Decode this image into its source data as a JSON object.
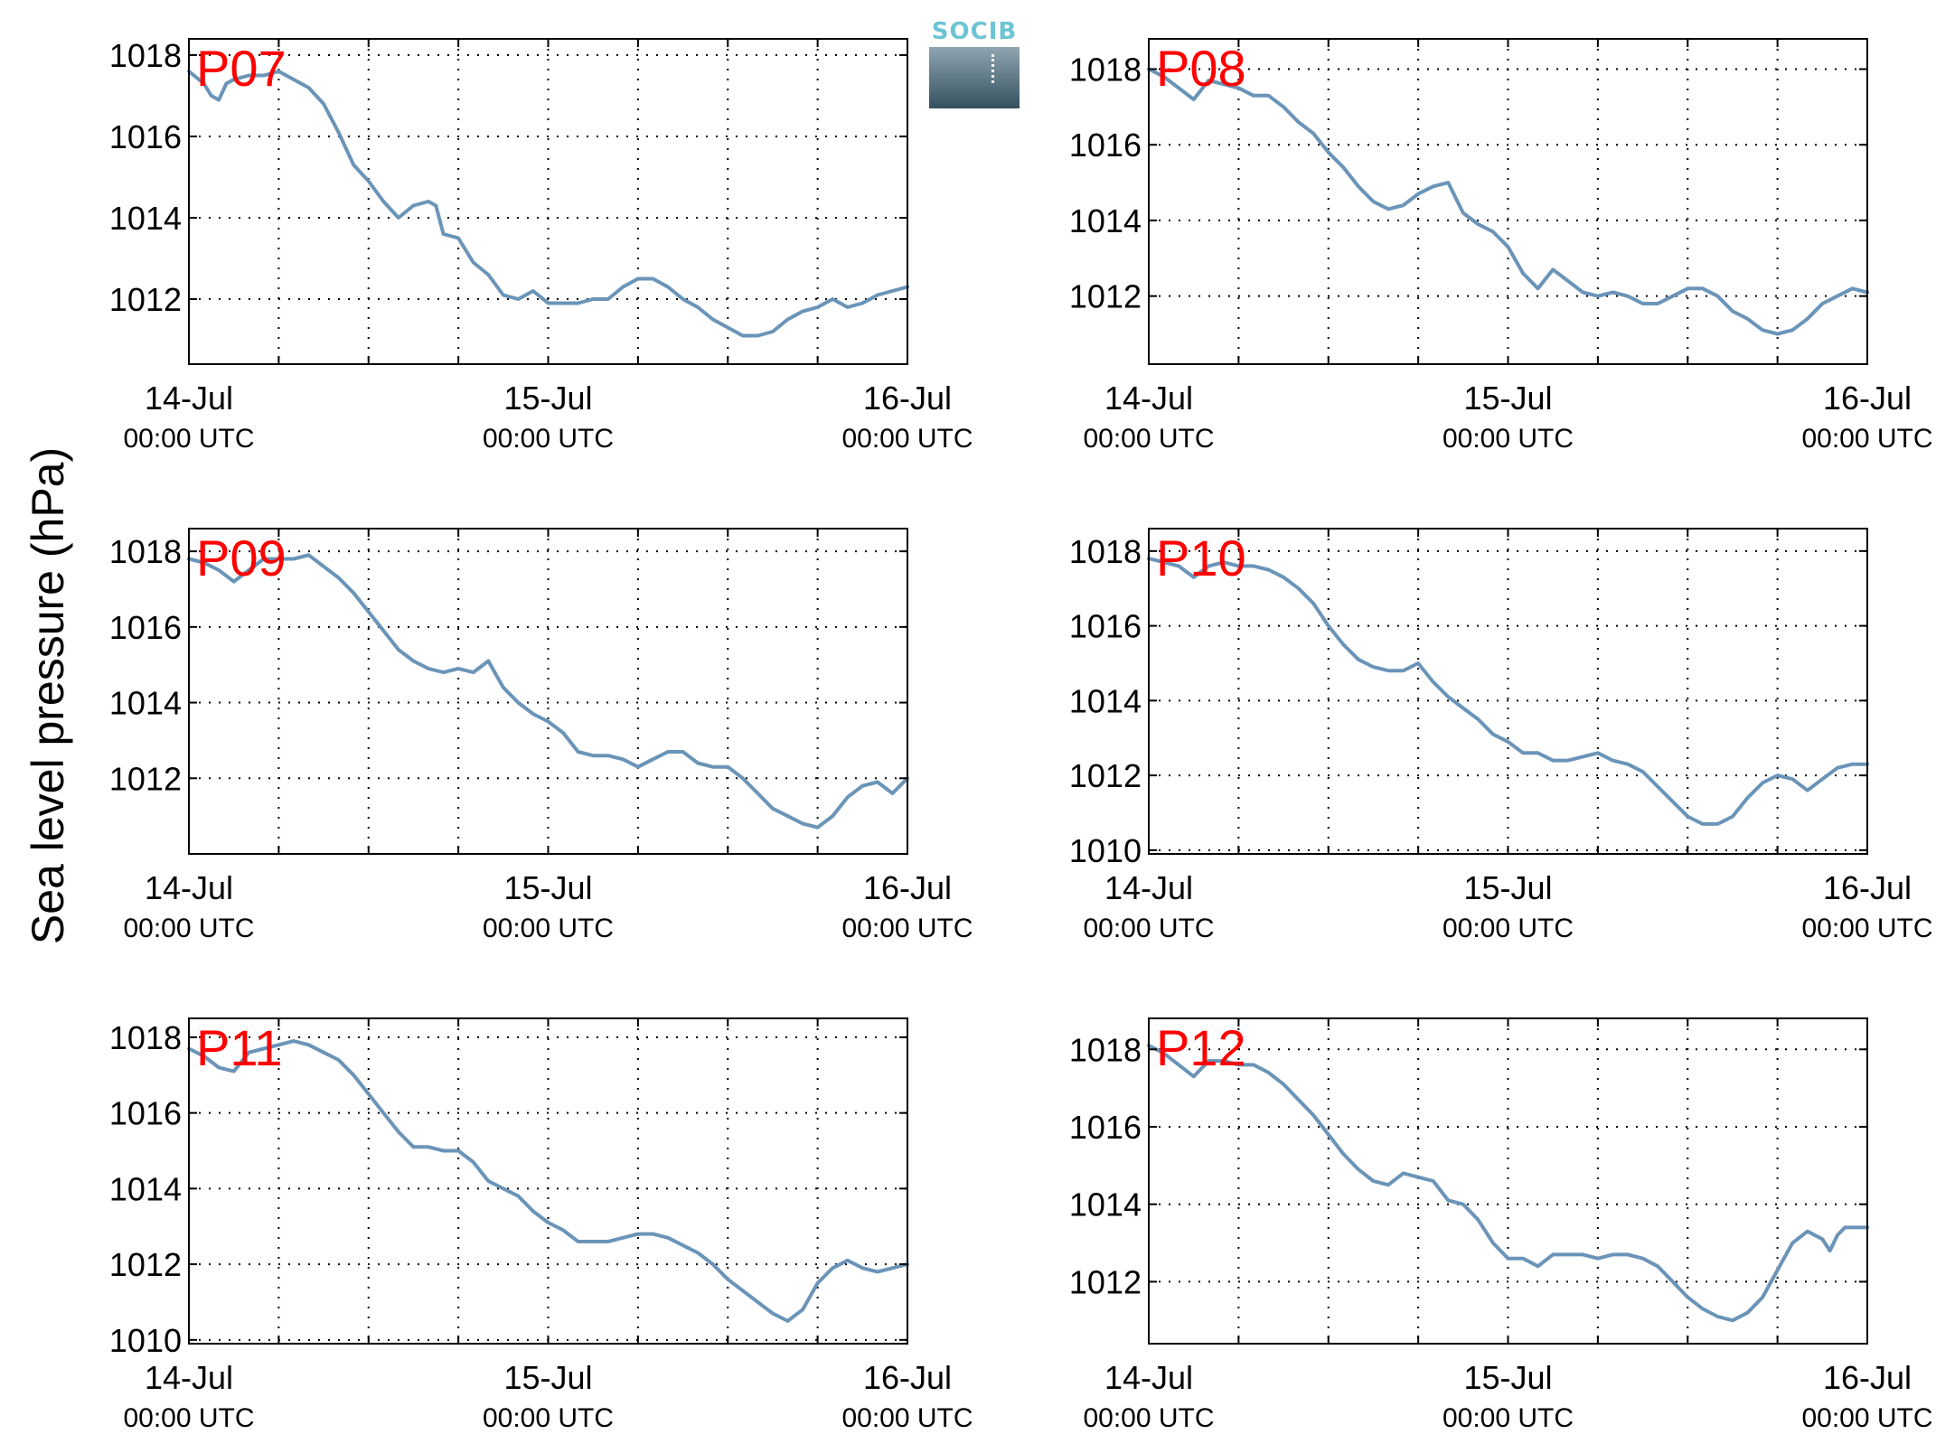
{
  "ylabel": "Sea level pressure (hPa)",
  "logo": {
    "text": "SOCIB"
  },
  "colors": {
    "line": "#6a94b8",
    "station_label": "#ff0000",
    "axes": "#000000",
    "grid": "#000000"
  },
  "chart_data": [
    {
      "type": "line",
      "title": "P07",
      "xlim": [
        0,
        48
      ],
      "ylim": [
        1010.4,
        1018.4
      ],
      "yticks": [
        1012,
        1014,
        1016,
        1018
      ],
      "xticks": [
        0,
        6,
        12,
        18,
        24,
        30,
        36,
        42,
        48
      ],
      "xtick_labels": [
        {
          "x": 0,
          "date": "14-Jul",
          "time": "00:00 UTC"
        },
        {
          "x": 24,
          "date": "15-Jul",
          "time": "00:00 UTC"
        },
        {
          "x": 48,
          "date": "16-Jul",
          "time": "00:00 UTC"
        }
      ],
      "grid": true,
      "series": [
        {
          "x": [
            0,
            1,
            1.5,
            2,
            2.5,
            3,
            4,
            5,
            6,
            7,
            8,
            9,
            10,
            11,
            12,
            13,
            14,
            15,
            16,
            16.5,
            17,
            18,
            19,
            20,
            21,
            22,
            23,
            24,
            25,
            26,
            27,
            28,
            29,
            30,
            31,
            32,
            33,
            34,
            35,
            36,
            37,
            38,
            39,
            40,
            41,
            42,
            43,
            44,
            45,
            46,
            47,
            48
          ],
          "y": [
            1017.6,
            1017.3,
            1017.0,
            1016.9,
            1017.3,
            1017.4,
            1017.5,
            1017.5,
            1017.6,
            1017.4,
            1017.2,
            1016.8,
            1016.1,
            1015.3,
            1014.9,
            1014.4,
            1014.0,
            1014.3,
            1014.4,
            1014.3,
            1013.6,
            1013.5,
            1012.9,
            1012.6,
            1012.1,
            1012.0,
            1012.2,
            1011.9,
            1011.9,
            1011.9,
            1012.0,
            1012.0,
            1012.3,
            1012.5,
            1012.5,
            1012.3,
            1012.0,
            1011.8,
            1011.5,
            1011.3,
            1011.1,
            1011.1,
            1011.2,
            1011.5,
            1011.7,
            1011.8,
            1012.0,
            1011.8,
            1011.9,
            1012.1,
            1012.2,
            1012.3
          ]
        }
      ]
    },
    {
      "type": "line",
      "title": "P08",
      "xlim": [
        0,
        48
      ],
      "ylim": [
        1010.2,
        1018.8
      ],
      "yticks": [
        1012,
        1014,
        1016,
        1018
      ],
      "xticks": [
        0,
        6,
        12,
        18,
        24,
        30,
        36,
        42,
        48
      ],
      "xtick_labels": [
        {
          "x": 0,
          "date": "14-Jul",
          "time": "00:00 UTC"
        },
        {
          "x": 24,
          "date": "15-Jul",
          "time": "00:00 UTC"
        },
        {
          "x": 48,
          "date": "16-Jul",
          "time": "00:00 UTC"
        }
      ],
      "grid": true,
      "series": [
        {
          "x": [
            0,
            1,
            2,
            3,
            4,
            5,
            6,
            7,
            8,
            9,
            10,
            11,
            12,
            13,
            14,
            15,
            16,
            17,
            18,
            19,
            20,
            21,
            22,
            23,
            24,
            25,
            26,
            27,
            28,
            29,
            30,
            31,
            32,
            33,
            34,
            35,
            36,
            37,
            38,
            39,
            40,
            41,
            42,
            43,
            44,
            45,
            46,
            47,
            48
          ],
          "y": [
            1018.0,
            1017.8,
            1017.5,
            1017.2,
            1017.7,
            1017.6,
            1017.5,
            1017.3,
            1017.3,
            1017.0,
            1016.6,
            1016.3,
            1015.8,
            1015.4,
            1014.9,
            1014.5,
            1014.3,
            1014.4,
            1014.7,
            1014.9,
            1015.0,
            1014.2,
            1013.9,
            1013.7,
            1013.3,
            1012.6,
            1012.2,
            1012.7,
            1012.4,
            1012.1,
            1012.0,
            1012.1,
            1012.0,
            1011.8,
            1011.8,
            1012.0,
            1012.2,
            1012.2,
            1012.0,
            1011.6,
            1011.4,
            1011.1,
            1011.0,
            1011.1,
            1011.4,
            1011.8,
            1012.0,
            1012.2,
            1012.1
          ]
        }
      ]
    },
    {
      "type": "line",
      "title": "P09",
      "xlim": [
        0,
        48
      ],
      "ylim": [
        1010.0,
        1018.6
      ],
      "yticks": [
        1012,
        1014,
        1016,
        1018
      ],
      "xticks": [
        0,
        6,
        12,
        18,
        24,
        30,
        36,
        42,
        48
      ],
      "xtick_labels": [
        {
          "x": 0,
          "date": "14-Jul",
          "time": "00:00 UTC"
        },
        {
          "x": 24,
          "date": "15-Jul",
          "time": "00:00 UTC"
        },
        {
          "x": 48,
          "date": "16-Jul",
          "time": "00:00 UTC"
        }
      ],
      "grid": true,
      "series": [
        {
          "x": [
            0,
            1,
            2,
            3,
            4,
            5,
            6,
            7,
            8,
            9,
            10,
            11,
            12,
            13,
            14,
            15,
            16,
            17,
            18,
            19,
            20,
            21,
            22,
            23,
            24,
            25,
            26,
            27,
            28,
            29,
            30,
            31,
            32,
            33,
            34,
            35,
            36,
            37,
            38,
            39,
            40,
            41,
            42,
            43,
            44,
            45,
            46,
            47,
            48
          ],
          "y": [
            1017.8,
            1017.7,
            1017.5,
            1017.2,
            1017.5,
            1017.8,
            1017.8,
            1017.8,
            1017.9,
            1017.6,
            1017.3,
            1016.9,
            1016.4,
            1015.9,
            1015.4,
            1015.1,
            1014.9,
            1014.8,
            1014.9,
            1014.8,
            1015.1,
            1014.4,
            1014.0,
            1013.7,
            1013.5,
            1013.2,
            1012.7,
            1012.6,
            1012.6,
            1012.5,
            1012.3,
            1012.5,
            1012.7,
            1012.7,
            1012.4,
            1012.3,
            1012.3,
            1012.0,
            1011.6,
            1011.2,
            1011.0,
            1010.8,
            1010.7,
            1011.0,
            1011.5,
            1011.8,
            1011.9,
            1011.6,
            1012.0
          ]
        }
      ]
    },
    {
      "type": "line",
      "title": "P10",
      "xlim": [
        0,
        48
      ],
      "ylim": [
        1009.9,
        1018.6
      ],
      "yticks": [
        1010,
        1012,
        1014,
        1016,
        1018
      ],
      "xticks": [
        0,
        6,
        12,
        18,
        24,
        30,
        36,
        42,
        48
      ],
      "xtick_labels": [
        {
          "x": 0,
          "date": "14-Jul",
          "time": "00:00 UTC"
        },
        {
          "x": 24,
          "date": "15-Jul",
          "time": "00:00 UTC"
        },
        {
          "x": 48,
          "date": "16-Jul",
          "time": "00:00 UTC"
        }
      ],
      "grid": true,
      "series": [
        {
          "x": [
            0,
            1,
            2,
            3,
            4,
            5,
            6,
            7,
            8,
            9,
            10,
            11,
            12,
            13,
            14,
            15,
            16,
            17,
            18,
            19,
            20,
            21,
            22,
            23,
            24,
            25,
            26,
            27,
            28,
            29,
            30,
            31,
            32,
            33,
            34,
            35,
            36,
            37,
            38,
            39,
            40,
            41,
            42,
            43,
            44,
            45,
            46,
            47,
            48
          ],
          "y": [
            1017.8,
            1017.7,
            1017.6,
            1017.3,
            1017.6,
            1017.7,
            1017.6,
            1017.6,
            1017.5,
            1017.3,
            1017.0,
            1016.6,
            1016.0,
            1015.5,
            1015.1,
            1014.9,
            1014.8,
            1014.8,
            1015.0,
            1014.5,
            1014.1,
            1013.8,
            1013.5,
            1013.1,
            1012.9,
            1012.6,
            1012.6,
            1012.4,
            1012.4,
            1012.5,
            1012.6,
            1012.4,
            1012.3,
            1012.1,
            1011.7,
            1011.3,
            1010.9,
            1010.7,
            1010.7,
            1010.9,
            1011.4,
            1011.8,
            1012.0,
            1011.9,
            1011.6,
            1011.9,
            1012.2,
            1012.3,
            1012.3
          ]
        }
      ]
    },
    {
      "type": "line",
      "title": "P11",
      "xlim": [
        0,
        48
      ],
      "ylim": [
        1009.9,
        1018.5
      ],
      "yticks": [
        1010,
        1012,
        1014,
        1016,
        1018
      ],
      "xticks": [
        0,
        6,
        12,
        18,
        24,
        30,
        36,
        42,
        48
      ],
      "xtick_labels": [
        {
          "x": 0,
          "date": "14-Jul",
          "time": "00:00 UTC"
        },
        {
          "x": 24,
          "date": "15-Jul",
          "time": "00:00 UTC"
        },
        {
          "x": 48,
          "date": "16-Jul",
          "time": "00:00 UTC"
        }
      ],
      "grid": true,
      "series": [
        {
          "x": [
            0,
            1,
            2,
            3,
            4,
            5,
            6,
            7,
            8,
            9,
            10,
            11,
            12,
            13,
            14,
            15,
            16,
            17,
            18,
            19,
            20,
            21,
            22,
            23,
            24,
            25,
            26,
            27,
            28,
            29,
            30,
            31,
            32,
            33,
            34,
            35,
            36,
            37,
            38,
            39,
            40,
            41,
            42,
            43,
            44,
            45,
            46,
            47,
            48
          ],
          "y": [
            1017.7,
            1017.5,
            1017.2,
            1017.1,
            1017.6,
            1017.7,
            1017.8,
            1017.9,
            1017.8,
            1017.6,
            1017.4,
            1017.0,
            1016.5,
            1016.0,
            1015.5,
            1015.1,
            1015.1,
            1015.0,
            1015.0,
            1014.7,
            1014.2,
            1014.0,
            1013.8,
            1013.4,
            1013.1,
            1012.9,
            1012.6,
            1012.6,
            1012.6,
            1012.7,
            1012.8,
            1012.8,
            1012.7,
            1012.5,
            1012.3,
            1012.0,
            1011.6,
            1011.3,
            1011.0,
            1010.7,
            1010.5,
            1010.8,
            1011.5,
            1011.9,
            1012.1,
            1011.9,
            1011.8,
            1011.9,
            1012.0
          ]
        }
      ]
    },
    {
      "type": "line",
      "title": "P12",
      "xlim": [
        0,
        48
      ],
      "ylim": [
        1010.4,
        1018.8
      ],
      "yticks": [
        1012,
        1014,
        1016,
        1018
      ],
      "xticks": [
        0,
        6,
        12,
        18,
        24,
        30,
        36,
        42,
        48
      ],
      "xtick_labels": [
        {
          "x": 0,
          "date": "14-Jul",
          "time": "00:00 UTC"
        },
        {
          "x": 24,
          "date": "15-Jul",
          "time": "00:00 UTC"
        },
        {
          "x": 48,
          "date": "16-Jul",
          "time": "00:00 UTC"
        }
      ],
      "grid": true,
      "series": [
        {
          "x": [
            0,
            1,
            2,
            3,
            4,
            5,
            6,
            7,
            8,
            9,
            10,
            11,
            12,
            13,
            14,
            15,
            16,
            17,
            18,
            19,
            20,
            21,
            22,
            23,
            24,
            25,
            26,
            27,
            28,
            29,
            30,
            31,
            32,
            33,
            34,
            35,
            36,
            37,
            38,
            39,
            40,
            41,
            42,
            43,
            44,
            45,
            45.5,
            46,
            46.5,
            47,
            47.5,
            48
          ],
          "y": [
            1018.1,
            1017.9,
            1017.6,
            1017.3,
            1017.7,
            1017.7,
            1017.6,
            1017.6,
            1017.4,
            1017.1,
            1016.7,
            1016.3,
            1015.8,
            1015.3,
            1014.9,
            1014.6,
            1014.5,
            1014.8,
            1014.7,
            1014.6,
            1014.1,
            1014.0,
            1013.6,
            1013.0,
            1012.6,
            1012.6,
            1012.4,
            1012.7,
            1012.7,
            1012.7,
            1012.6,
            1012.7,
            1012.7,
            1012.6,
            1012.4,
            1012.0,
            1011.6,
            1011.3,
            1011.1,
            1011.0,
            1011.2,
            1011.6,
            1012.3,
            1013.0,
            1013.3,
            1013.1,
            1012.8,
            1013.2,
            1013.4,
            1013.4,
            1013.4,
            1013.4
          ]
        }
      ]
    }
  ]
}
